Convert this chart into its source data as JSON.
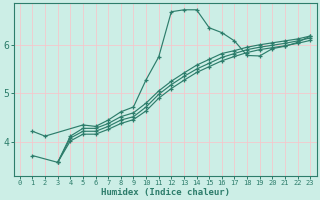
{
  "xlabel": "Humidex (Indice chaleur)",
  "bg_color": "#cceee6",
  "line_color": "#2d7d6b",
  "grid_color": "#f0faf8",
  "xmin": -0.5,
  "xmax": 23.5,
  "ymin": 3.3,
  "ymax": 6.85,
  "yticks": [
    4,
    5,
    6
  ],
  "xticks": [
    0,
    1,
    2,
    3,
    4,
    5,
    6,
    7,
    8,
    9,
    10,
    11,
    12,
    13,
    14,
    15,
    16,
    17,
    18,
    19,
    20,
    21,
    22,
    23
  ],
  "line_peaked_x": [
    1,
    2,
    5,
    6,
    7,
    8,
    9,
    10,
    11,
    12,
    13,
    14,
    15,
    16,
    17,
    18,
    19,
    20,
    21,
    22,
    23
  ],
  "line_peaked_y": [
    4.22,
    4.12,
    4.35,
    4.32,
    4.45,
    4.62,
    4.72,
    5.28,
    5.75,
    6.68,
    6.72,
    6.72,
    6.35,
    6.25,
    6.08,
    5.78,
    5.77,
    5.92,
    5.97,
    6.05,
    6.18
  ],
  "line_a_x": [
    1,
    3,
    4,
    5,
    6,
    7,
    8,
    9,
    10,
    11,
    12,
    13,
    14,
    15,
    16,
    17,
    18,
    19,
    20,
    21,
    22,
    23
  ],
  "line_a_y": [
    3.72,
    3.58,
    4.12,
    4.28,
    4.28,
    4.38,
    4.52,
    4.6,
    4.8,
    5.05,
    5.25,
    5.42,
    5.58,
    5.7,
    5.82,
    5.88,
    5.95,
    6.0,
    6.04,
    6.08,
    6.12,
    6.18
  ],
  "line_b_x": [
    3,
    4,
    5,
    6,
    7,
    8,
    9,
    10,
    11,
    12,
    13,
    14,
    15,
    16,
    17,
    18,
    19,
    20,
    21,
    22,
    23
  ],
  "line_b_y": [
    3.58,
    4.08,
    4.22,
    4.22,
    4.32,
    4.45,
    4.52,
    4.72,
    4.98,
    5.18,
    5.35,
    5.5,
    5.62,
    5.74,
    5.82,
    5.9,
    5.95,
    5.99,
    6.03,
    6.08,
    6.14
  ],
  "line_c_x": [
    3,
    4,
    5,
    6,
    7,
    8,
    9,
    10,
    11,
    12,
    13,
    14,
    15,
    16,
    17,
    18,
    19,
    20,
    21,
    22,
    23
  ],
  "line_c_y": [
    3.58,
    4.02,
    4.16,
    4.16,
    4.26,
    4.38,
    4.46,
    4.64,
    4.9,
    5.1,
    5.27,
    5.43,
    5.55,
    5.67,
    5.76,
    5.84,
    5.9,
    5.94,
    5.98,
    6.03,
    6.09
  ]
}
